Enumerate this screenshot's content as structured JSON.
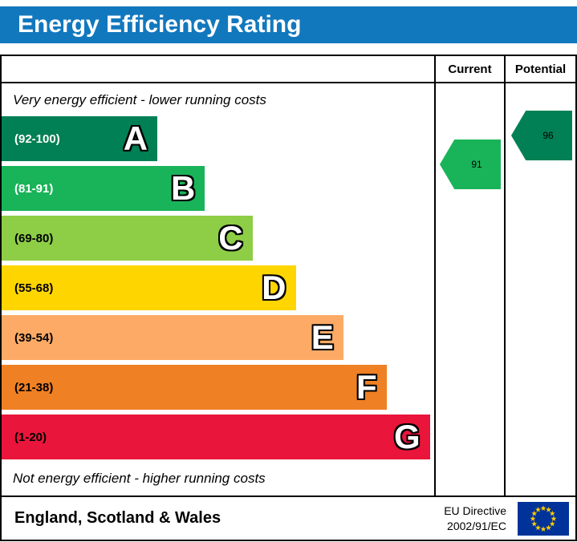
{
  "theme": {
    "title_bg": "#1278be",
    "title_text_color": "#ffffff",
    "border_color": "#000000"
  },
  "title": "Energy Efficiency Rating",
  "columns": {
    "current": "Current",
    "potential": "Potential"
  },
  "captions": {
    "top": "Very energy efficient - lower running costs",
    "bottom": "Not energy efficient - higher running costs"
  },
  "chart_data": {
    "type": "bar",
    "title": "Energy Efficiency Rating",
    "bands": [
      {
        "letter": "A",
        "range": "(92-100)",
        "color": "#008054",
        "label_color": "#ffffff",
        "width_pct": 36
      },
      {
        "letter": "B",
        "range": "(81-91)",
        "color": "#19b459",
        "label_color": "#ffffff",
        "width_pct": 47
      },
      {
        "letter": "C",
        "range": "(69-80)",
        "color": "#8dce46",
        "label_color": "#000000",
        "width_pct": 58
      },
      {
        "letter": "D",
        "range": "(55-68)",
        "color": "#ffd500",
        "label_color": "#000000",
        "width_pct": 68
      },
      {
        "letter": "E",
        "range": "(39-54)",
        "color": "#fcaa65",
        "label_color": "#000000",
        "width_pct": 79
      },
      {
        "letter": "F",
        "range": "(21-38)",
        "color": "#ef8023",
        "label_color": "#000000",
        "width_pct": 89
      },
      {
        "letter": "G",
        "range": "(1-20)",
        "color": "#e9153b",
        "label_color": "#000000",
        "width_pct": 99
      }
    ],
    "ratings": {
      "current": {
        "value": "91",
        "band": "B",
        "color": "#19b459"
      },
      "potential": {
        "value": "96",
        "band": "A",
        "color": "#008054"
      }
    }
  },
  "footer": {
    "region": "England, Scotland & Wales",
    "directive_line1": "EU Directive",
    "directive_line2": "2002/91/EC",
    "flag": {
      "field": "#003399",
      "stars": "#ffcc00"
    }
  }
}
